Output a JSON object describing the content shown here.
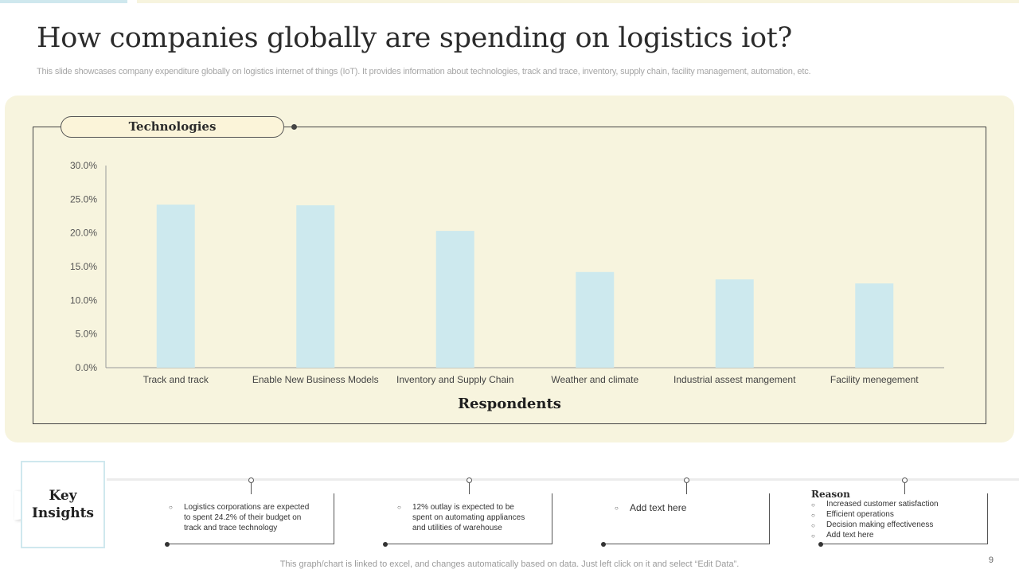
{
  "slide": {
    "title": "How companies globally are spending on logistics iot?",
    "subtitle": "This slide showcases company expenditure globally on logistics internet of things (IoT). It provides information about technologies, track and trace,  inventory,  supply chain, facility management, automation, etc.",
    "footer": "This graph/chart is linked to excel,  and changes automatically based on data. Just left click on it and select “Edit Data”.",
    "page_number": "9"
  },
  "chart_data": {
    "type": "bar",
    "title": "Technologies",
    "xlabel": "Respondents",
    "ylabel": "",
    "categories": [
      "Track and track",
      "Enable New Business Models",
      "Inventory and Supply Chain",
      "Weather and climate",
      "Industrial assest mangement",
      "Facility menegement"
    ],
    "values": [
      24.2,
      24.1,
      20.3,
      14.2,
      13.1,
      12.5
    ],
    "ylim": [
      0,
      30
    ],
    "yticks": [
      "0.0%",
      "5.0%",
      "10.0%",
      "15.0%",
      "20.0%",
      "25.0%",
      "30.0%"
    ],
    "grid": false,
    "bar_color": "#cde9ee"
  },
  "insights": {
    "title": "Key\nInsights",
    "items": [
      {
        "lines": [
          "Logistics corporations are expected",
          "to spent 24.2% of their budget on",
          "track and trace technology"
        ]
      },
      {
        "lines": [
          "12% outlay is expected to be",
          "spent on automating appliances",
          "and utilities of warehouse"
        ]
      },
      {
        "lines": [
          "Add text here"
        ]
      }
    ],
    "reason": {
      "title": "Reason",
      "items": [
        "Increased customer satisfaction",
        "Efficient operations",
        "Decision making effectiveness",
        "Add text here"
      ]
    }
  },
  "colors": {
    "panel": "#f7f4de",
    "accent": "#cfe8ee",
    "bar": "#cde9ee"
  }
}
